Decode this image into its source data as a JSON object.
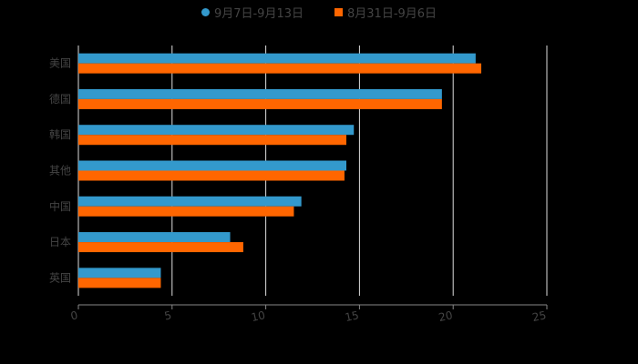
{
  "chart_data": {
    "type": "bar",
    "orientation": "horizontal",
    "title": "",
    "xlabel": "",
    "ylabel": "",
    "categories": [
      "美国",
      "德国",
      "韩国",
      "其他",
      "中国",
      "日本",
      "英国"
    ],
    "series": [
      {
        "name": "9月7日-9月13日",
        "color": "#3399cc",
        "marker": "circle",
        "values": [
          21.2,
          19.4,
          14.7,
          14.3,
          11.9,
          8.1,
          4.4
        ]
      },
      {
        "name": "8月31日-9月6日",
        "color": "#ff6600",
        "marker": "square",
        "values": [
          21.5,
          19.4,
          14.3,
          14.2,
          11.5,
          8.8,
          4.4
        ]
      }
    ],
    "xlim": [
      0,
      25
    ],
    "xticks": [
      0,
      5,
      10,
      15,
      20,
      25
    ],
    "grid": true,
    "legend_position": "top"
  },
  "colors": {
    "background": "#000000",
    "grid": "#dddddd",
    "text": "#444444"
  }
}
